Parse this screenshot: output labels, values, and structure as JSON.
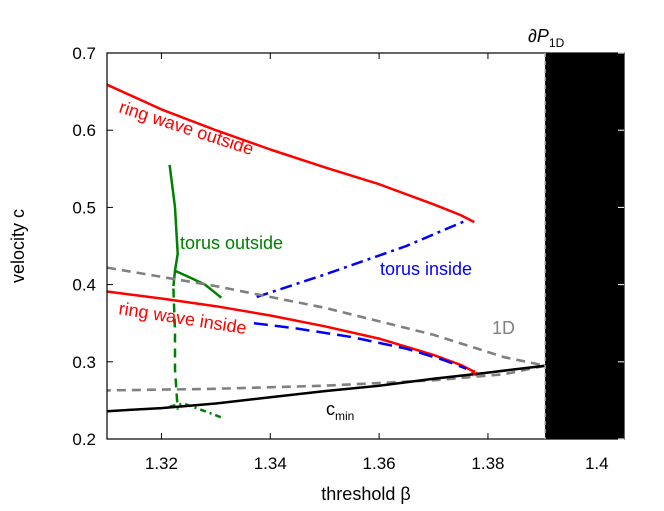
{
  "chart_data": {
    "type": "line",
    "xlabel": "threshold β",
    "ylabel": "velocity c",
    "xlim": [
      1.31,
      1.405
    ],
    "ylim": [
      0.2,
      0.7
    ],
    "xticks": [
      "1.32",
      "1.34",
      "1.36",
      "1.38",
      "1.4"
    ],
    "yticks": [
      "0.2",
      "0.3",
      "0.4",
      "0.5",
      "0.6",
      "0.7"
    ],
    "grid": false,
    "legend": "none",
    "boundary_label": {
      "main": "∂P",
      "sub": "1D"
    },
    "shaded_region": {
      "x_from": 1.3905,
      "x_to": 1.405,
      "color": "#000000"
    },
    "annotations": [
      {
        "id": "ring-outside",
        "text": "ring wave outside",
        "color": "#ff0000"
      },
      {
        "id": "torus-outside",
        "text": "torus outside",
        "color": "#008000"
      },
      {
        "id": "torus-inside",
        "text": "torus inside",
        "color": "#0000ff"
      },
      {
        "id": "ring-inside",
        "text": "ring wave inside",
        "color": "#ff0000"
      },
      {
        "id": "oned",
        "text": "1D",
        "color": "#808080"
      },
      {
        "id": "cmin",
        "text": "c",
        "sub": "min",
        "color": "#000000"
      }
    ],
    "series": [
      {
        "id": "ring-wave-outside",
        "color": "#ff0000",
        "dash": "solid",
        "x": [
          1.31,
          1.32,
          1.33,
          1.34,
          1.35,
          1.36,
          1.37,
          1.375,
          1.3775
        ],
        "y": [
          0.659,
          0.627,
          0.6,
          0.575,
          0.552,
          0.53,
          0.504,
          0.49,
          0.481
        ]
      },
      {
        "id": "ring-wave-inside",
        "color": "#ff0000",
        "dash": "solid",
        "x": [
          1.31,
          1.32,
          1.33,
          1.34,
          1.35,
          1.36,
          1.37,
          1.375,
          1.3775
        ],
        "y": [
          0.391,
          0.382,
          0.372,
          0.36,
          0.346,
          0.33,
          0.309,
          0.296,
          0.287
        ]
      },
      {
        "id": "torus-inside-lower",
        "color": "#0000ff",
        "dash": "longdash",
        "x": [
          1.337,
          1.345,
          1.355,
          1.365,
          1.372,
          1.376
        ],
        "y": [
          0.35,
          0.343,
          0.332,
          0.317,
          0.302,
          0.291
        ]
      },
      {
        "id": "torus-inside-upper",
        "color": "#0000ff",
        "dash": "dashdot",
        "x": [
          1.3375,
          1.35,
          1.365,
          1.376
        ],
        "y": [
          0.384,
          0.413,
          0.45,
          0.483
        ]
      },
      {
        "id": "torus-outside-upper",
        "color": "#008000",
        "dash": "solid",
        "x": [
          1.3215,
          1.3225,
          1.323,
          1.3225,
          1.3222
        ],
        "y": [
          0.555,
          0.5,
          0.44,
          0.418,
          0.398
        ]
      },
      {
        "id": "torus-outside-branch",
        "color": "#008000",
        "dash": "solid",
        "x": [
          1.3225,
          1.325,
          1.328,
          1.331
        ],
        "y": [
          0.418,
          0.41,
          0.4,
          0.383
        ]
      },
      {
        "id": "torus-outside-lower",
        "color": "#008000",
        "dash": "dashed",
        "x": [
          1.3222,
          1.3225,
          1.3225,
          1.323
        ],
        "y": [
          0.395,
          0.34,
          0.29,
          0.238
        ]
      },
      {
        "id": "torus-outside-lower-branch",
        "color": "#008000",
        "dash": "dotdash",
        "x": [
          1.3215,
          1.324,
          1.328,
          1.331
        ],
        "y": [
          0.242,
          0.246,
          0.236,
          0.228
        ]
      },
      {
        "id": "one-d",
        "color": "#808080",
        "dash": "dashed",
        "x": [
          1.31,
          1.33,
          1.35,
          1.37,
          1.383,
          1.3905,
          1.383,
          1.37,
          1.35,
          1.33,
          1.31
        ],
        "y": [
          0.422,
          0.398,
          0.37,
          0.335,
          0.306,
          0.295,
          0.284,
          0.276,
          0.269,
          0.265,
          0.263
        ]
      },
      {
        "id": "c-min",
        "color": "#000000",
        "dash": "solid",
        "x": [
          1.31,
          1.32,
          1.33,
          1.34,
          1.35,
          1.36,
          1.37,
          1.38,
          1.3905
        ],
        "y": [
          0.236,
          0.24,
          0.246,
          0.254,
          0.262,
          0.269,
          0.278,
          0.286,
          0.295
        ]
      }
    ],
    "marker": {
      "id": "endpoint-asterisk",
      "symbol": "*",
      "color": "#ff0000",
      "x": 1.3775,
      "y": 0.288
    }
  }
}
